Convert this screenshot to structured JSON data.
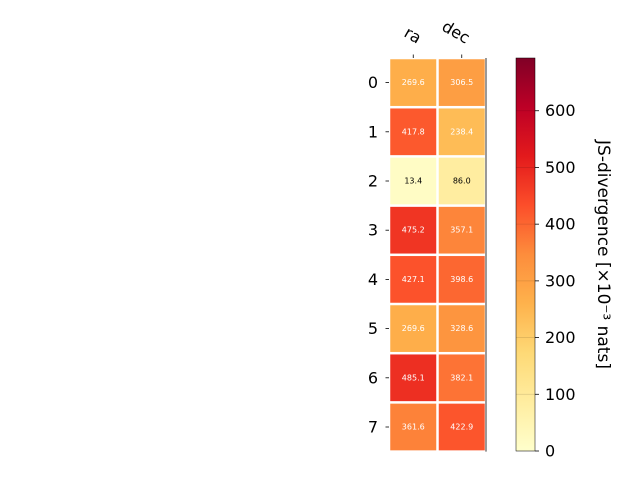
{
  "chart_data": {
    "type": "heatmap",
    "columns": [
      "ra",
      "dec"
    ],
    "rows": [
      "0",
      "1",
      "2",
      "3",
      "4",
      "5",
      "6",
      "7"
    ],
    "values": [
      [
        269.6,
        306.5
      ],
      [
        417.8,
        238.4
      ],
      [
        13.4,
        86.0
      ],
      [
        475.2,
        357.1
      ],
      [
        427.1,
        398.6
      ],
      [
        269.6,
        328.6
      ],
      [
        485.1,
        382.1
      ],
      [
        361.6,
        422.9
      ]
    ],
    "value_labels": [
      [
        "269.6",
        "306.5"
      ],
      [
        "417.8",
        "238.4"
      ],
      [
        "13.4",
        "86.0"
      ],
      [
        "475.2",
        "357.1"
      ],
      [
        "427.1",
        "398.6"
      ],
      [
        "269.6",
        "328.6"
      ],
      [
        "485.1",
        "382.1"
      ],
      [
        "361.6",
        "422.9"
      ]
    ],
    "colorbar": {
      "label": "JS-divergence [×10⁻³ nats]",
      "range": [
        0,
        693
      ],
      "ticks": [
        0,
        100,
        200,
        300,
        400,
        500,
        600
      ],
      "tick_labels": [
        "0",
        "100",
        "200",
        "300",
        "400",
        "500",
        "600"
      ],
      "colormap": "YlOrRd"
    }
  }
}
